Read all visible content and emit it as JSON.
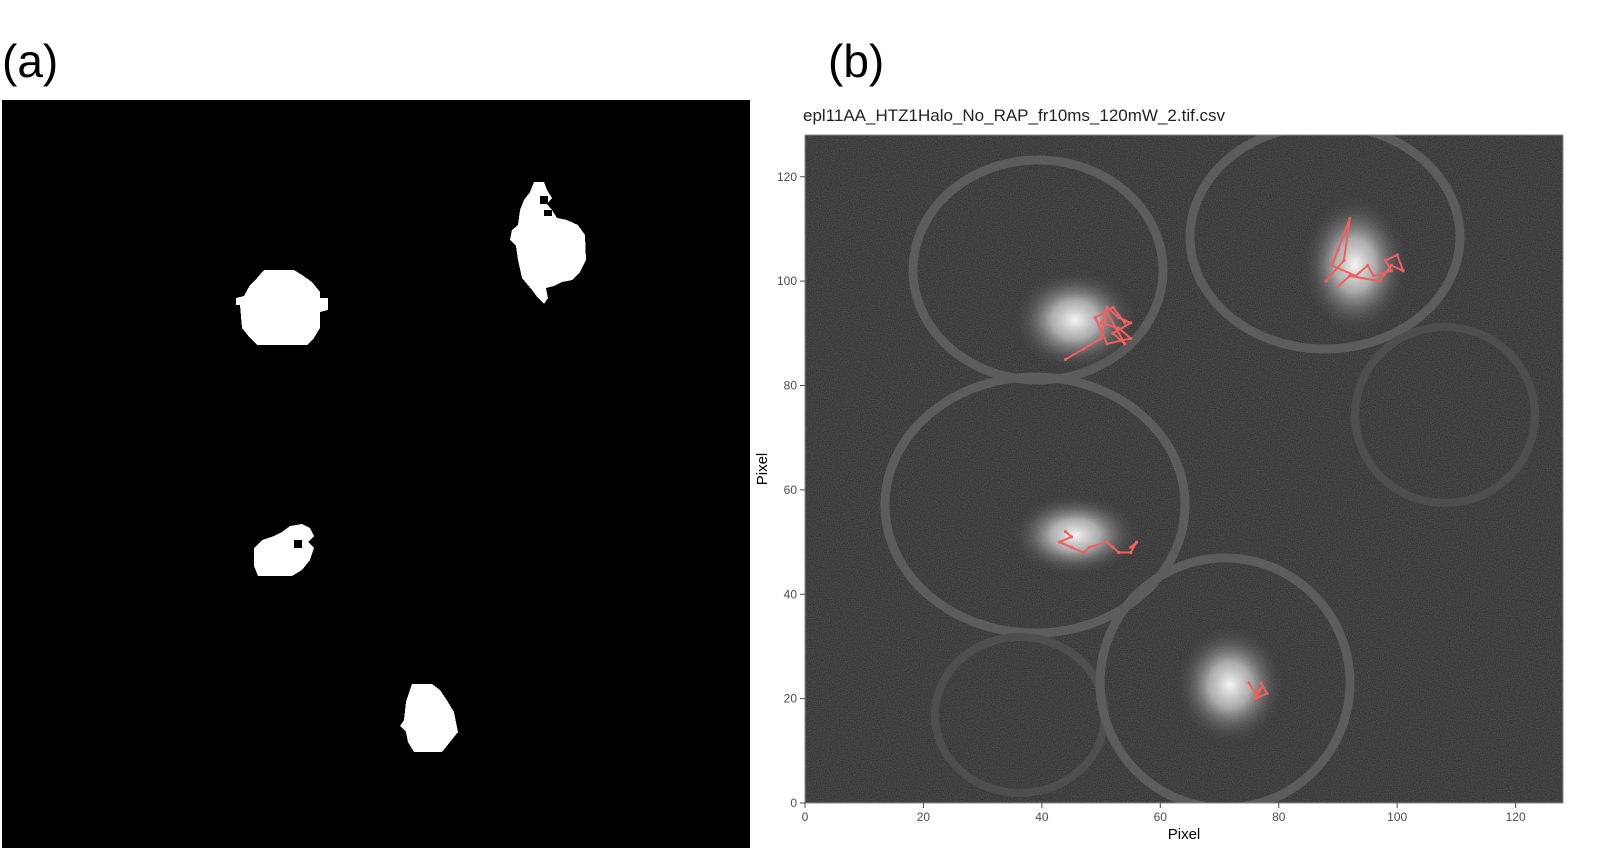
{
  "panels": {
    "a_label": "(a)",
    "b_label": "(b)"
  },
  "mask": {
    "background": "#000000",
    "foreground": "#ffffff"
  },
  "plot": {
    "title": "epl11AA_HTZ1Halo_No_RAP_fr10ms_120mW_2.tif.csv",
    "xlabel": "Pixel",
    "ylabel": "Pixel",
    "track_color": "#f0605e"
  },
  "chart_data": {
    "type": "scatter",
    "title": "epl11AA_HTZ1Halo_No_RAP_fr10ms_120mW_2.tif.csv",
    "xlabel": "Pixel",
    "ylabel": "Pixel",
    "xlim": [
      0,
      128
    ],
    "ylim": [
      0,
      128
    ],
    "x_ticks": [
      0,
      20,
      40,
      60,
      80,
      100,
      120
    ],
    "y_ticks": [
      0,
      20,
      40,
      60,
      80,
      100,
      120
    ],
    "grid": false,
    "background": "grayscale microscopy image",
    "series": [
      {
        "x": [
          44,
          47,
          50,
          51,
          53,
          55,
          52,
          54,
          51,
          50,
          53,
          55,
          51,
          49,
          52,
          54
        ],
        "y": [
          85,
          87,
          89,
          95,
          93,
          92,
          90,
          88,
          94,
          92,
          91,
          89,
          88,
          93,
          95,
          92
        ]
      },
      {
        "x": [
          88,
          91,
          92,
          90,
          89,
          93,
          95,
          96,
          99,
          98,
          100,
          101,
          99,
          97,
          92,
          90
        ],
        "y": [
          100,
          104,
          112,
          106,
          103,
          101,
          103,
          101,
          102,
          104,
          105,
          102,
          103,
          100,
          101,
          99
        ]
      },
      {
        "x": [
          44,
          45,
          43,
          45,
          47,
          48,
          51,
          52,
          53,
          55,
          56,
          55
        ],
        "y": [
          52,
          51,
          50,
          49,
          48,
          49,
          50,
          49,
          48,
          48,
          50,
          49
        ]
      },
      {
        "x": [
          75,
          76,
          77,
          76,
          78,
          77
        ],
        "y": [
          23,
          21,
          22,
          20,
          21,
          23
        ]
      }
    ]
  }
}
